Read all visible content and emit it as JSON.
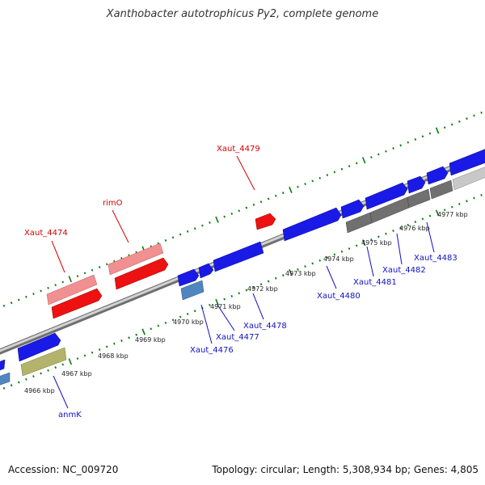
{
  "title": "Xanthobacter autotrophicus Py2, complete genome",
  "footer": {
    "accession": "Accession: NC_009720",
    "summary": "Topology: circular; Length: 5,308,934 bp; Genes: 4,805"
  },
  "scale_labels": [
    "4966 kbp",
    "4967 kbp",
    "4968 kbp",
    "4969 kbp",
    "4970 kbp",
    "4971 kbp",
    "4972 kbp",
    "4973 kbp",
    "4974 kbp",
    "4975 kbp",
    "4976 kbp",
    "4977 kbp"
  ],
  "gene_labels": {
    "Xaut_4474": "Xaut_4474",
    "rimO": "rimO",
    "Xaut_4479": "Xaut_4479",
    "anmK": "anmK",
    "Xaut_4476": "Xaut_4476",
    "Xaut_4477": "Xaut_4477",
    "Xaut_4478": "Xaut_4478",
    "Xaut_4480": "Xaut_4480",
    "Xaut_4481": "Xaut_4481",
    "Xaut_4482": "Xaut_4482",
    "Xaut_4483": "Xaut_4483"
  },
  "colors": {
    "forward_cds": "#1a1ae6",
    "rna_light": "#f09090",
    "rna_dark": "#ee1111",
    "pseudo_gray": "#707070",
    "light_gray": "#c8c8c8",
    "steel_blue": "#4f86c0",
    "olive": "#b3b36b",
    "tick_green": "#0a7a0a",
    "label_red": "#d40000",
    "label_blue": "#1010c8",
    "backbone": "#a8a8a8"
  }
}
